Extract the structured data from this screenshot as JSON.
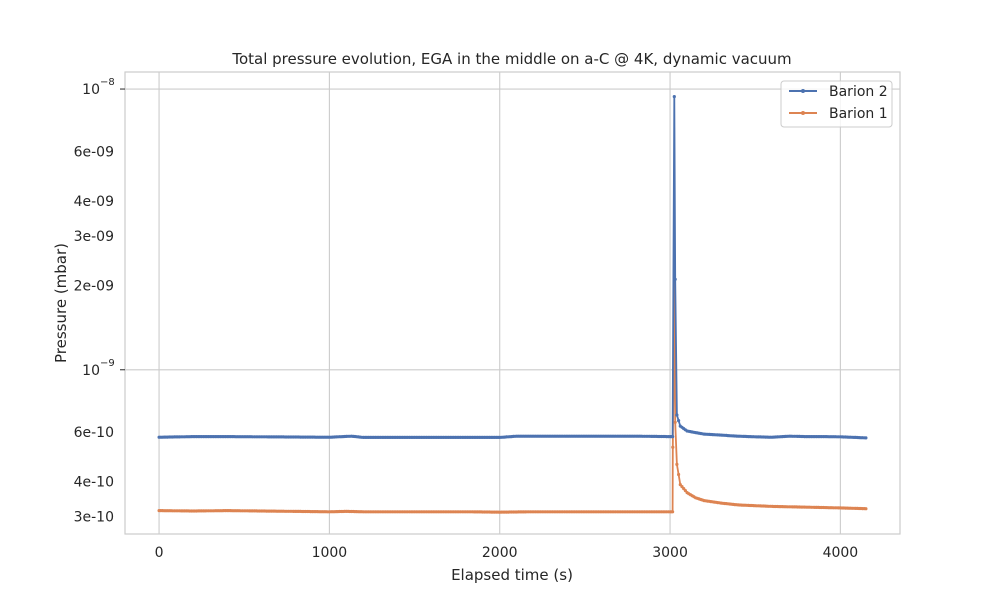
{
  "chart_data": {
    "type": "line",
    "title": "Total pressure evolution, EGA in the middle on a-C @ 4K, dynamic vacuum",
    "xlabel": "Elapsed time (s)",
    "ylabel": "Pressure (mbar)",
    "xlim": [
      -200,
      4350
    ],
    "ylim": [
      2.6e-10,
      1.15e-08
    ],
    "yscale": "log",
    "grid": true,
    "legend_position": "top-right",
    "x_ticks": [
      {
        "value": 0,
        "label": "0"
      },
      {
        "value": 1000,
        "label": "1000"
      },
      {
        "value": 2000,
        "label": "2000"
      },
      {
        "value": 3000,
        "label": "3000"
      },
      {
        "value": 4000,
        "label": "4000"
      }
    ],
    "y_major_ticks": [
      {
        "value": 1e-09,
        "base": "10",
        "exp": "−9"
      },
      {
        "value": 1e-08,
        "base": "10",
        "exp": "−8"
      }
    ],
    "y_minor_ticks": [
      {
        "value": 3e-10,
        "label": "3e-10"
      },
      {
        "value": 4e-10,
        "label": "4e-10"
      },
      {
        "value": 6e-10,
        "label": "6e-10"
      },
      {
        "value": 2e-09,
        "label": "2e-09"
      },
      {
        "value": 3e-09,
        "label": "3e-09"
      },
      {
        "value": 4e-09,
        "label": "4e-09"
      },
      {
        "value": 6e-09,
        "label": "6e-09"
      }
    ],
    "series": [
      {
        "name": "Barion 2",
        "color": "#4c72b0",
        "x": [
          0,
          200,
          400,
          600,
          800,
          1000,
          1130,
          1200,
          1400,
          1600,
          1800,
          2000,
          2100,
          2200,
          2400,
          2600,
          2800,
          3000,
          3015,
          3025,
          3030,
          3040,
          3060,
          3100,
          3200,
          3300,
          3400,
          3500,
          3600,
          3700,
          3800,
          3900,
          4000,
          4150
        ],
        "y": [
          5.75e-10,
          5.78e-10,
          5.78e-10,
          5.77e-10,
          5.76e-10,
          5.75e-10,
          5.8e-10,
          5.74e-10,
          5.74e-10,
          5.74e-10,
          5.74e-10,
          5.74e-10,
          5.8e-10,
          5.8e-10,
          5.8e-10,
          5.8e-10,
          5.8e-10,
          5.78e-10,
          5.78e-10,
          9.4e-09,
          2.1e-09,
          6.9e-10,
          6.3e-10,
          6.05e-10,
          5.9e-10,
          5.85e-10,
          5.8e-10,
          5.77e-10,
          5.75e-10,
          5.8e-10,
          5.78e-10,
          5.78e-10,
          5.77e-10,
          5.72e-10
        ]
      },
      {
        "name": "Barion 1",
        "color": "#dd8452",
        "x": [
          0,
          200,
          400,
          600,
          800,
          1000,
          1100,
          1200,
          1400,
          1600,
          1800,
          2000,
          2200,
          2400,
          2600,
          2800,
          3000,
          3015,
          3016,
          3025,
          3030,
          3040,
          3060,
          3100,
          3150,
          3200,
          3300,
          3400,
          3600,
          3800,
          4000,
          4150
        ],
        "y": [
          3.15e-10,
          3.14e-10,
          3.15e-10,
          3.14e-10,
          3.13e-10,
          3.12e-10,
          3.13e-10,
          3.12e-10,
          3.12e-10,
          3.12e-10,
          3.12e-10,
          3.11e-10,
          3.12e-10,
          3.12e-10,
          3.12e-10,
          3.12e-10,
          3.12e-10,
          3.12e-10,
          5.3e-10,
          2.05e-09,
          6.5e-10,
          4.6e-10,
          3.9e-10,
          3.65e-10,
          3.5e-10,
          3.42e-10,
          3.35e-10,
          3.3e-10,
          3.26e-10,
          3.24e-10,
          3.22e-10,
          3.2e-10
        ]
      }
    ]
  }
}
